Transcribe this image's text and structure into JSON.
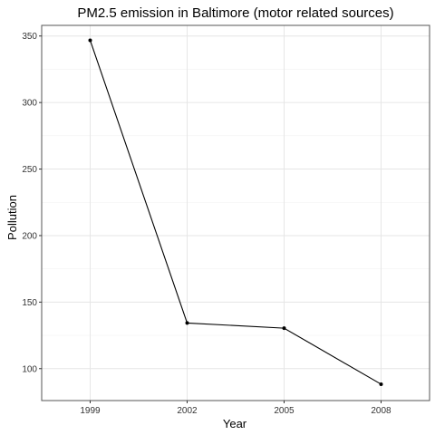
{
  "chart_data": {
    "type": "line",
    "title": "PM2.5 emission in Baltimore (motor related sources)",
    "xlabel": "Year",
    "ylabel": "Pollution",
    "categories": [
      "1999",
      "2002",
      "2005",
      "2008"
    ],
    "values": [
      346.8,
      134.3,
      130.4,
      88.3
    ],
    "ylim": [
      76,
      358
    ],
    "yticks": [
      100,
      150,
      200,
      250,
      300,
      350
    ],
    "yminor": [
      125,
      175,
      225,
      275,
      325
    ],
    "grid": true,
    "legend": "none"
  }
}
